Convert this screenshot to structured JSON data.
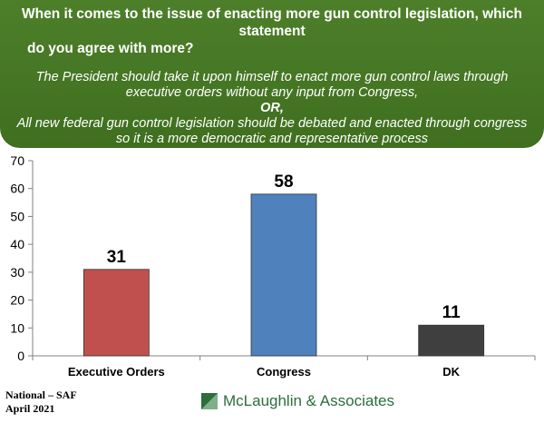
{
  "header": {
    "question_line1": "When it comes to the issue of enacting more gun control legislation, which statement",
    "question_line2": "do you agree with more?",
    "option1_line1": "The President should take it upon himself to enact more gun control laws through",
    "option1_line2": "executive orders without any input from Congress,",
    "or": "OR,",
    "option2_line1": "All new federal gun control legislation should be debated and enacted through congress",
    "option2_line2": "so it is a more democratic and representative process"
  },
  "footer": {
    "line1": "National – SAF",
    "line2": "April 2021",
    "brand": "McLaughlin & Associates"
  },
  "colors": {
    "header": "#4a7c27",
    "executive_orders": "#c0504d",
    "congress": "#4f81bd",
    "dk": "#3f3f3f",
    "brand": "#2c6d3c"
  },
  "chart_data": {
    "type": "bar",
    "categories": [
      "Executive Orders",
      "Congress",
      "DK"
    ],
    "values": [
      31,
      58,
      11
    ],
    "colors": [
      "#c0504d",
      "#4f81bd",
      "#3f3f3f"
    ],
    "ylim": [
      0,
      70
    ],
    "yticks": [
      0,
      10,
      20,
      30,
      40,
      50,
      60,
      70
    ],
    "grid": false,
    "data_labels": true
  }
}
